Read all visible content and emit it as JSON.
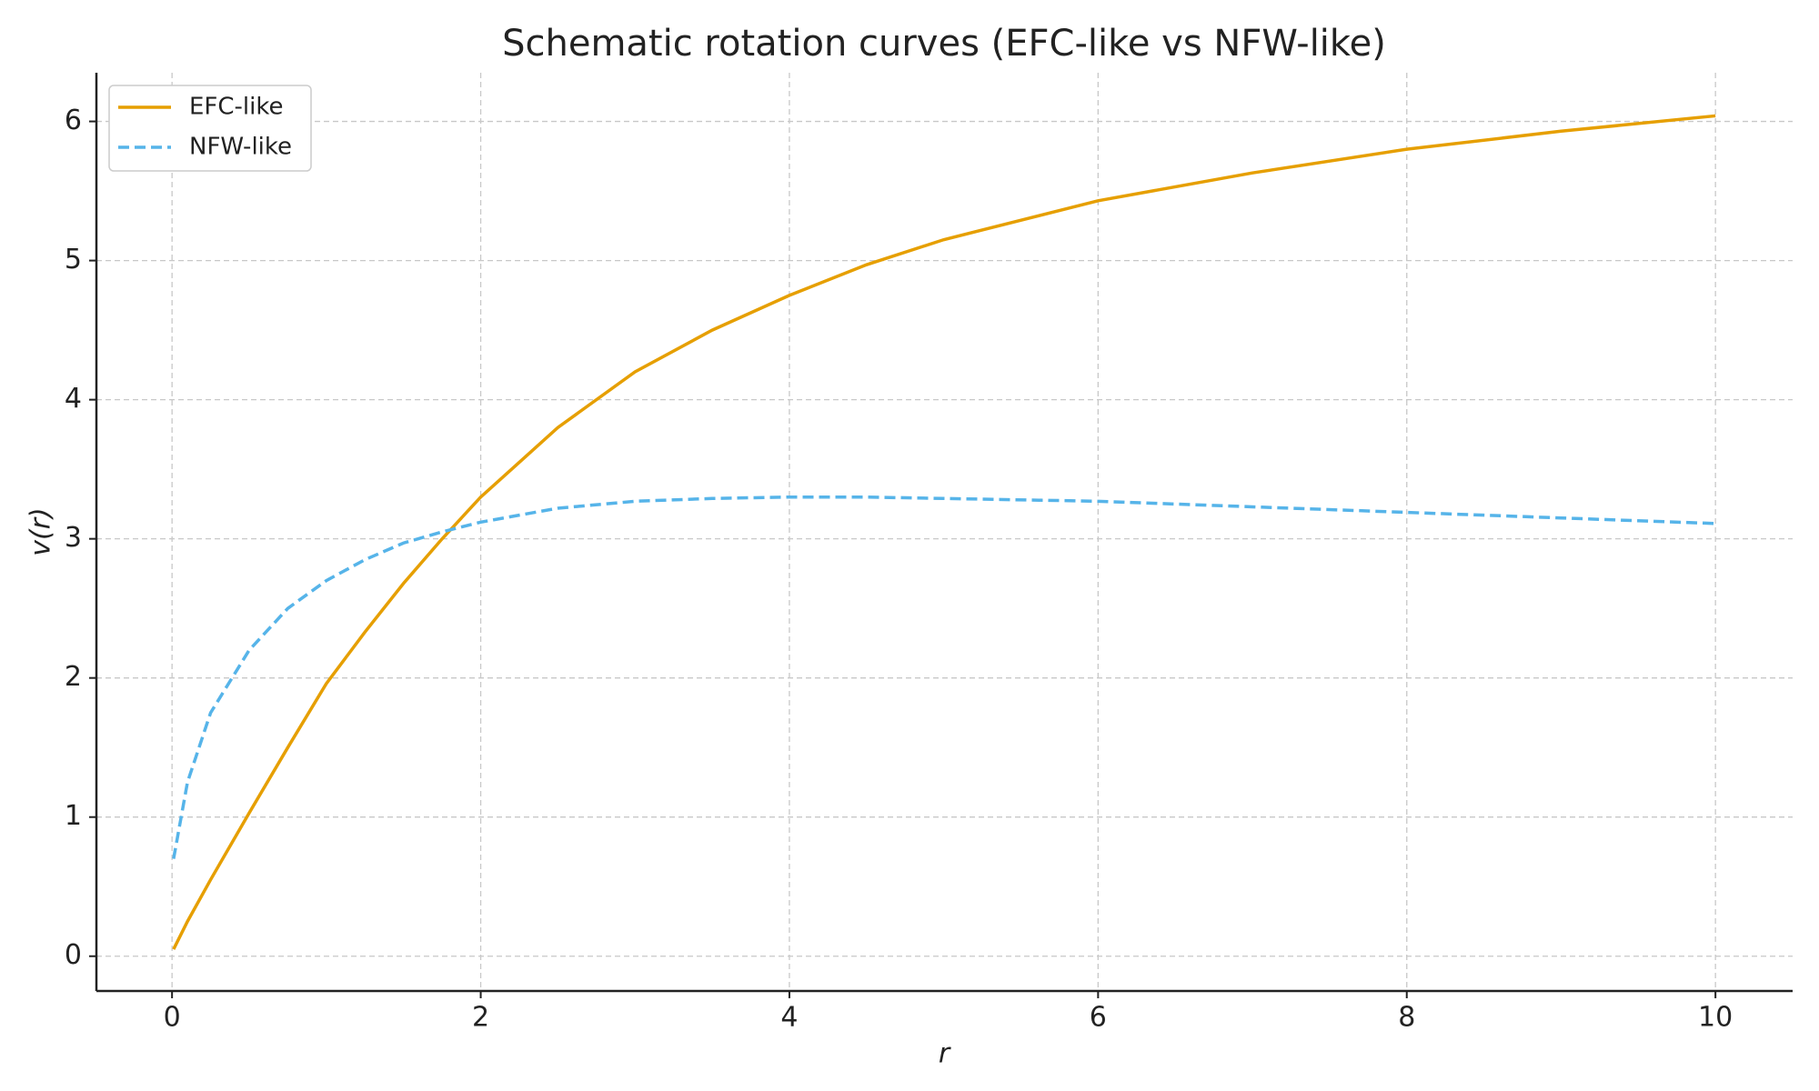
{
  "chart_data": {
    "type": "line",
    "title": "Schematic rotation curves (EFC-like vs NFW-like)",
    "x_label": "r",
    "y_label": "v(r)",
    "x": [
      0.01,
      0.1,
      0.25,
      0.5,
      0.75,
      1,
      1.25,
      1.5,
      1.75,
      2,
      2.5,
      3,
      3.5,
      4,
      4.5,
      5,
      6,
      7,
      8,
      9,
      10
    ],
    "series": [
      {
        "name": "EFC-like",
        "color": "#e69f00",
        "dash": "solid",
        "values": [
          0.05,
          0.25,
          0.55,
          1.03,
          1.5,
          1.96,
          2.33,
          2.68,
          3.0,
          3.3,
          3.8,
          4.2,
          4.5,
          4.75,
          4.97,
          5.15,
          5.43,
          5.63,
          5.8,
          5.93,
          6.04
        ]
      },
      {
        "name": "NFW-like",
        "color": "#56b4e9",
        "dash": "dashed",
        "values": [
          0.7,
          1.25,
          1.75,
          2.2,
          2.5,
          2.7,
          2.85,
          2.97,
          3.05,
          3.12,
          3.22,
          3.27,
          3.29,
          3.3,
          3.3,
          3.29,
          3.27,
          3.23,
          3.19,
          3.15,
          3.11
        ]
      }
    ],
    "xlim": [
      -0.49,
      10.5
    ],
    "ylim": [
      -0.25,
      6.35
    ],
    "xticks": [
      0,
      2,
      4,
      6,
      8,
      10
    ],
    "yticks": [
      0,
      1,
      2,
      3,
      4,
      5,
      6
    ],
    "grid": true,
    "legend": "upper left"
  }
}
